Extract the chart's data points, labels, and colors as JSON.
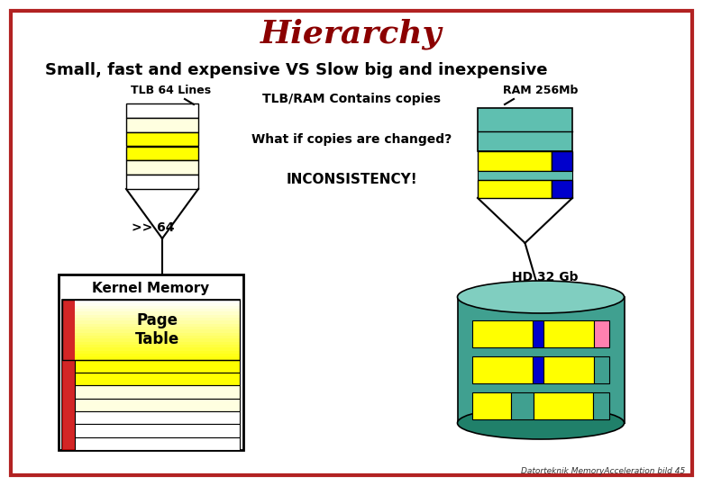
{
  "title": "Hierarchy",
  "subtitle": "Small, fast and expensive VS Slow big and inexpensive",
  "title_color": "#8B0000",
  "border_color": "#B22222",
  "bg_color": "#FFFFFF",
  "tlb_label": "TLB 64 Lines",
  "ram_label": "RAM 256Mb",
  "center_label": "TLB/RAM Contains copies",
  "what_if_text": "What if copies are changed?",
  "inconsistency_text": "INCONSISTENCY!",
  "arrow_64": ">> 64",
  "kernel_label": "Kernel Memory",
  "page_table_label": "Page\nTable",
  "hd_label": "HD 32 Gb",
  "footer": "Datorteknik MemoryAcceleration bild 45",
  "yellow": "#FFFF00",
  "yellow_pale": "#FFFFE0",
  "teal_top": "#5FBFB0",
  "teal_body": "#40A090",
  "teal_dark": "#20806A",
  "blue": "#0000CC",
  "pink": "#FF80B0",
  "red_bar": "#CC0000",
  "white": "#FFFFFF",
  "black": "#000000",
  "gray_light": "#F0F0F0"
}
